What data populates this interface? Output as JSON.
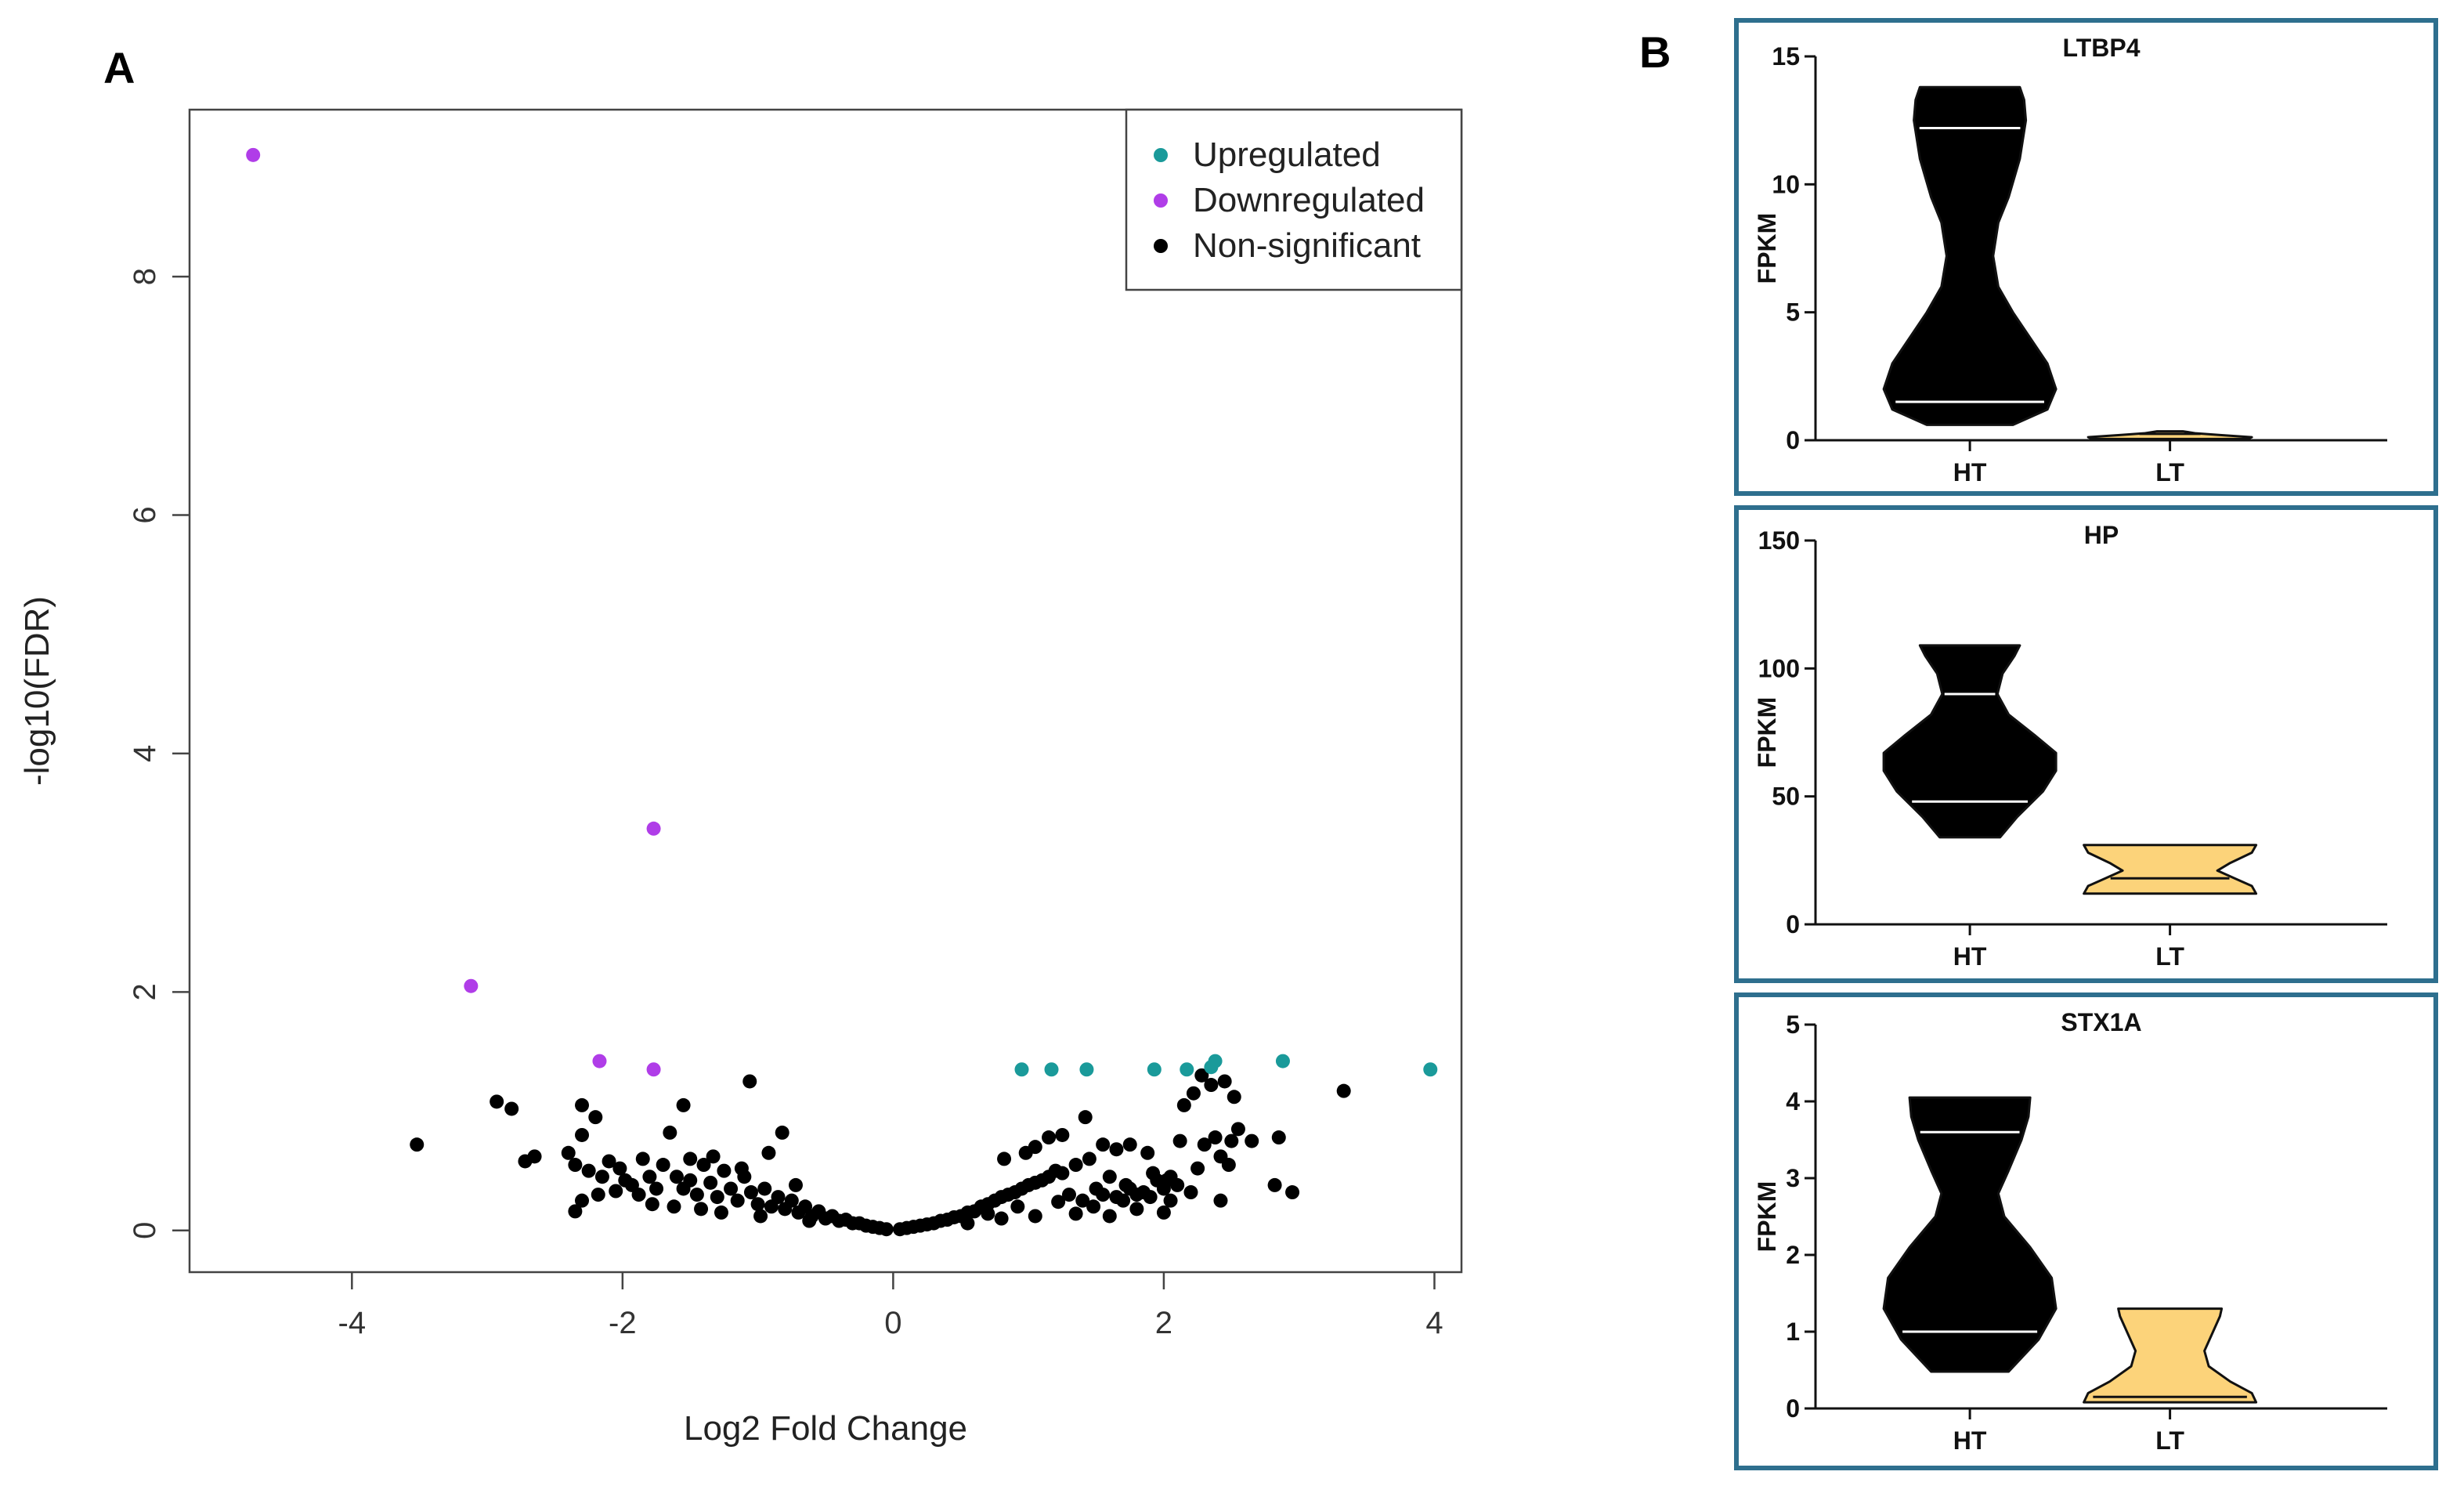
{
  "panels": {
    "a_label": "A",
    "b_label": "B"
  },
  "colors": {
    "up": "#1a9a9a",
    "down": "#b03de8",
    "ns": "#000000",
    "violin_lt": "#fcd37a",
    "box_border": "#2e6f8e"
  },
  "chart_data": [
    {
      "type": "scatter",
      "title": "",
      "xlabel": "Log2 Fold Change",
      "ylabel": "-log10(FDR)",
      "xlim": [
        -5.2,
        4.2
      ],
      "ylim": [
        -0.35,
        9.4
      ],
      "xticks": [
        -4,
        -2,
        0,
        2,
        4
      ],
      "yticks": [
        0,
        2,
        4,
        6,
        8
      ],
      "legend": {
        "position": "top-right",
        "entries": [
          "Upregulated",
          "Downregulated",
          "Non-significant"
        ]
      },
      "series": [
        {
          "name": "Upregulated",
          "color": "#1a9a9a",
          "points": [
            [
              0.95,
              1.35
            ],
            [
              1.17,
              1.35
            ],
            [
              1.43,
              1.35
            ],
            [
              1.93,
              1.35
            ],
            [
              2.17,
              1.35
            ],
            [
              2.35,
              1.37
            ],
            [
              2.38,
              1.42
            ],
            [
              2.88,
              1.42
            ],
            [
              3.97,
              1.35
            ]
          ]
        },
        {
          "name": "Downregulated",
          "color": "#b03de8",
          "points": [
            [
              -4.73,
              9.02
            ],
            [
              -1.77,
              3.37
            ],
            [
              -3.12,
              2.05
            ],
            [
              -2.17,
              1.42
            ],
            [
              -1.77,
              1.35
            ]
          ]
        },
        {
          "name": "Non-significant",
          "color": "#000000",
          "points": [
            [
              -3.52,
              0.72
            ],
            [
              -2.93,
              1.08
            ],
            [
              -2.82,
              1.02
            ],
            [
              -2.72,
              0.58
            ],
            [
              -2.65,
              0.62
            ],
            [
              -2.3,
              1.05
            ],
            [
              -2.2,
              0.95
            ],
            [
              -2.4,
              0.65
            ],
            [
              -2.35,
              0.55
            ],
            [
              -2.3,
              0.8
            ],
            [
              -2.25,
              0.5
            ],
            [
              -2.15,
              0.45
            ],
            [
              -2.1,
              0.58
            ],
            [
              -2.02,
              0.52
            ],
            [
              -1.98,
              0.42
            ],
            [
              -1.93,
              0.38
            ],
            [
              -1.85,
              0.6
            ],
            [
              -1.8,
              0.45
            ],
            [
              -1.75,
              0.35
            ],
            [
              -1.65,
              0.82
            ],
            [
              -1.7,
              0.55
            ],
            [
              -1.6,
              0.45
            ],
            [
              -1.55,
              0.35
            ],
            [
              -1.5,
              0.42
            ],
            [
              -1.45,
              0.3
            ],
            [
              -1.4,
              0.55
            ],
            [
              -1.35,
              0.4
            ],
            [
              -1.3,
              0.28
            ],
            [
              -1.25,
              0.5
            ],
            [
              -1.2,
              0.35
            ],
            [
              -1.15,
              0.25
            ],
            [
              -1.1,
              0.45
            ],
            [
              -1.05,
              0.32
            ],
            [
              -1.0,
              0.22
            ],
            [
              -0.95,
              0.35
            ],
            [
              -0.9,
              0.2
            ],
            [
              -0.85,
              0.28
            ],
            [
              -0.8,
              0.18
            ],
            [
              -0.75,
              0.25
            ],
            [
              -0.7,
              0.15
            ],
            [
              -0.65,
              0.2
            ],
            [
              -0.6,
              0.12
            ],
            [
              -0.55,
              0.16
            ],
            [
              -0.5,
              0.1
            ],
            [
              -0.45,
              0.12
            ],
            [
              -0.4,
              0.08
            ],
            [
              -0.35,
              0.09
            ],
            [
              -0.3,
              0.06
            ],
            [
              -0.25,
              0.06
            ],
            [
              -0.2,
              0.04
            ],
            [
              -0.15,
              0.03
            ],
            [
              -0.1,
              0.02
            ],
            [
              -0.05,
              0.01
            ],
            [
              -1.06,
              1.25
            ],
            [
              -1.55,
              1.05
            ],
            [
              -0.82,
              0.82
            ],
            [
              -0.92,
              0.65
            ],
            [
              -1.33,
              0.62
            ],
            [
              -1.12,
              0.52
            ],
            [
              -0.72,
              0.38
            ],
            [
              -1.88,
              0.3
            ],
            [
              -2.3,
              0.25
            ],
            [
              -2.35,
              0.16
            ],
            [
              -2.18,
              0.3
            ],
            [
              -1.62,
              0.2
            ],
            [
              -1.42,
              0.18
            ],
            [
              -1.27,
              0.15
            ],
            [
              -0.98,
              0.12
            ],
            [
              -0.62,
              0.08
            ],
            [
              -1.78,
              0.22
            ],
            [
              -2.05,
              0.33
            ],
            [
              -1.5,
              0.6
            ],
            [
              0.05,
              0.01
            ],
            [
              0.1,
              0.02
            ],
            [
              0.15,
              0.03
            ],
            [
              0.2,
              0.04
            ],
            [
              0.25,
              0.05
            ],
            [
              0.3,
              0.06
            ],
            [
              0.35,
              0.08
            ],
            [
              0.4,
              0.09
            ],
            [
              0.45,
              0.11
            ],
            [
              0.5,
              0.12
            ],
            [
              0.55,
              0.15
            ],
            [
              0.6,
              0.16
            ],
            [
              0.65,
              0.2
            ],
            [
              0.7,
              0.22
            ],
            [
              0.75,
              0.25
            ],
            [
              0.8,
              0.28
            ],
            [
              0.85,
              0.3
            ],
            [
              0.9,
              0.32
            ],
            [
              0.95,
              0.35
            ],
            [
              1.0,
              0.38
            ],
            [
              1.05,
              0.4
            ],
            [
              1.1,
              0.42
            ],
            [
              1.15,
              0.45
            ],
            [
              1.2,
              0.5
            ],
            [
              1.25,
              0.48
            ],
            [
              1.3,
              0.3
            ],
            [
              1.35,
              0.55
            ],
            [
              1.4,
              0.25
            ],
            [
              1.45,
              0.6
            ],
            [
              1.5,
              0.35
            ],
            [
              1.55,
              0.3
            ],
            [
              1.6,
              0.45
            ],
            [
              1.65,
              0.28
            ],
            [
              1.7,
              0.25
            ],
            [
              1.75,
              0.35
            ],
            [
              1.8,
              0.3
            ],
            [
              1.85,
              0.32
            ],
            [
              1.9,
              0.28
            ],
            [
              1.95,
              0.42
            ],
            [
              2.0,
              0.35
            ],
            [
              2.05,
              0.45
            ],
            [
              2.1,
              0.38
            ],
            [
              1.42,
              0.95
            ],
            [
              1.15,
              0.78
            ],
            [
              1.25,
              0.8
            ],
            [
              0.98,
              0.65
            ],
            [
              0.82,
              0.6
            ],
            [
              1.05,
              0.7
            ],
            [
              1.55,
              0.72
            ],
            [
              1.75,
              0.72
            ],
            [
              1.65,
              0.68
            ],
            [
              1.88,
              0.65
            ],
            [
              1.92,
              0.48
            ],
            [
              2.12,
              0.75
            ],
            [
              2.15,
              1.05
            ],
            [
              2.22,
              1.15
            ],
            [
              2.28,
              1.3
            ],
            [
              2.35,
              1.22
            ],
            [
              2.45,
              1.25
            ],
            [
              2.52,
              1.12
            ],
            [
              2.55,
              0.85
            ],
            [
              2.25,
              0.52
            ],
            [
              2.3,
              0.72
            ],
            [
              2.38,
              0.78
            ],
            [
              2.42,
              0.62
            ],
            [
              2.5,
              0.75
            ],
            [
              2.48,
              0.55
            ],
            [
              2.65,
              0.75
            ],
            [
              2.42,
              0.25
            ],
            [
              2.2,
              0.32
            ],
            [
              2.02,
              0.42
            ],
            [
              2.85,
              0.78
            ],
            [
              2.82,
              0.38
            ],
            [
              2.95,
              0.32
            ],
            [
              3.33,
              1.17
            ],
            [
              2.05,
              0.25
            ],
            [
              2.0,
              0.15
            ],
            [
              1.8,
              0.18
            ],
            [
              1.6,
              0.12
            ],
            [
              1.35,
              0.14
            ],
            [
              1.05,
              0.12
            ],
            [
              0.8,
              0.1
            ],
            [
              0.55,
              0.06
            ],
            [
              1.48,
              0.2
            ],
            [
              1.22,
              0.24
            ],
            [
              0.7,
              0.14
            ],
            [
              0.92,
              0.2
            ],
            [
              1.72,
              0.38
            ]
          ]
        }
      ]
    },
    {
      "type": "violin",
      "title": "LTBP4",
      "ylabel": "FPKM",
      "ylim": [
        0,
        15
      ],
      "yticks": [
        0,
        5,
        10,
        15
      ],
      "categories": [
        "HT",
        "LT"
      ],
      "violins": [
        {
          "category": "HT",
          "min": 0.6,
          "max": 13.8,
          "quartiles": [
            1.5,
            12.2
          ],
          "color": "#000000",
          "profile": [
            [
              0.6,
              0.5
            ],
            [
              1.2,
              0.9
            ],
            [
              2.0,
              1.0
            ],
            [
              3.0,
              0.9
            ],
            [
              4.0,
              0.7
            ],
            [
              5.0,
              0.5
            ],
            [
              6.0,
              0.33
            ],
            [
              7.2,
              0.27
            ],
            [
              8.5,
              0.33
            ],
            [
              9.5,
              0.45
            ],
            [
              11.0,
              0.58
            ],
            [
              12.5,
              0.65
            ],
            [
              13.3,
              0.63
            ],
            [
              13.8,
              0.58
            ]
          ]
        },
        {
          "category": "LT",
          "min": 0.05,
          "max": 0.35,
          "quartiles": [
            0.25
          ],
          "color": "#fcd37a",
          "profile": [
            [
              0.05,
              0.9
            ],
            [
              0.12,
              0.95
            ],
            [
              0.2,
              0.6
            ],
            [
              0.27,
              0.3
            ],
            [
              0.35,
              0.15
            ]
          ]
        }
      ]
    },
    {
      "type": "violin",
      "title": "HP",
      "ylabel": "FPKM",
      "ylim": [
        0,
        150
      ],
      "yticks": [
        0,
        50,
        100,
        150
      ],
      "categories": [
        "HT",
        "LT"
      ],
      "violins": [
        {
          "category": "HT",
          "min": 34,
          "max": 109,
          "quartiles": [
            48,
            90
          ],
          "color": "#000000",
          "profile": [
            [
              34,
              0.35
            ],
            [
              42,
              0.55
            ],
            [
              52,
              0.85
            ],
            [
              60,
              1.0
            ],
            [
              67,
              1.0
            ],
            [
              74,
              0.75
            ],
            [
              82,
              0.45
            ],
            [
              90,
              0.32
            ],
            [
              98,
              0.38
            ],
            [
              105,
              0.52
            ],
            [
              109,
              0.58
            ]
          ]
        },
        {
          "category": "LT",
          "min": 12,
          "max": 31,
          "quartiles": [
            18
          ],
          "color": "#fcd37a",
          "profile": [
            [
              12,
              1.0
            ],
            [
              15,
              0.95
            ],
            [
              18,
              0.75
            ],
            [
              21,
              0.55
            ],
            [
              24,
              0.7
            ],
            [
              28,
              0.95
            ],
            [
              31,
              1.0
            ]
          ]
        }
      ]
    },
    {
      "type": "violin",
      "title": "STX1A",
      "ylabel": "FPKM",
      "ylim": [
        0,
        5
      ],
      "yticks": [
        0,
        1,
        2,
        3,
        4,
        5
      ],
      "categories": [
        "HT",
        "LT"
      ],
      "violins": [
        {
          "category": "HT",
          "min": 0.48,
          "max": 4.05,
          "quartiles": [
            1.0,
            3.6
          ],
          "color": "#000000",
          "profile": [
            [
              0.48,
              0.45
            ],
            [
              0.9,
              0.8
            ],
            [
              1.3,
              1.0
            ],
            [
              1.7,
              0.95
            ],
            [
              2.1,
              0.7
            ],
            [
              2.5,
              0.4
            ],
            [
              2.8,
              0.33
            ],
            [
              3.1,
              0.45
            ],
            [
              3.5,
              0.6
            ],
            [
              3.8,
              0.68
            ],
            [
              4.05,
              0.7
            ]
          ]
        },
        {
          "category": "LT",
          "min": 0.08,
          "max": 1.3,
          "quartiles": [
            0.15
          ],
          "color": "#fcd37a",
          "profile": [
            [
              0.08,
              1.0
            ],
            [
              0.2,
              0.95
            ],
            [
              0.35,
              0.7
            ],
            [
              0.55,
              0.45
            ],
            [
              0.75,
              0.4
            ],
            [
              1.0,
              0.5
            ],
            [
              1.2,
              0.58
            ],
            [
              1.3,
              0.6
            ]
          ]
        }
      ]
    }
  ]
}
